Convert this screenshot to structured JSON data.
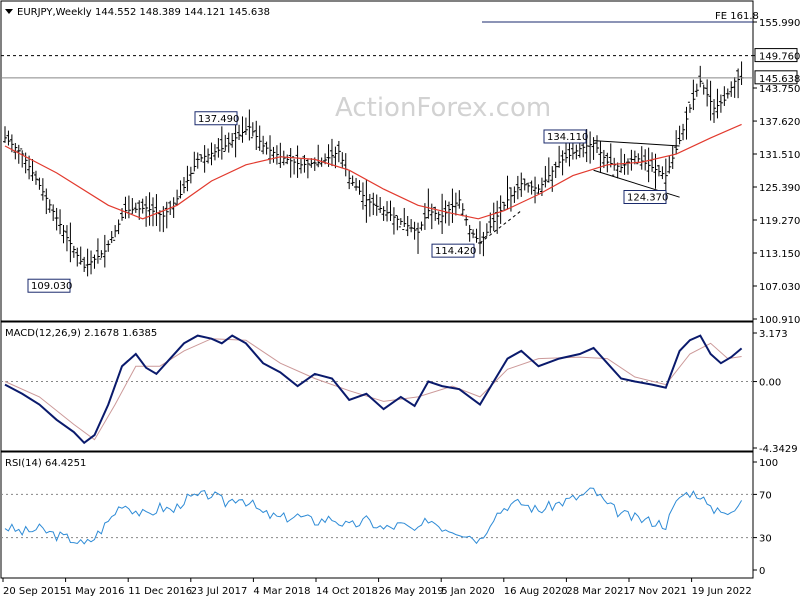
{
  "chart_data": [
    {
      "type": "ohlc",
      "title": "EURJPY,Weekly",
      "ohlc_text": "144.552 148.389 144.121 145.638",
      "watermark": "ActionForex.com",
      "ylim": [
        100.91,
        155.99
      ],
      "y_ticks": [
        "155.990",
        "149.760",
        "143.750",
        "137.620",
        "131.510",
        "125.390",
        "119.270",
        "113.150",
        "107.030",
        "100.910"
      ],
      "x_ticks": [
        "20 Sep 2015",
        "1 May 2016",
        "11 Dec 2016",
        "23 Jul 2017",
        "4 Mar 2018",
        "14 Oct 2018",
        "26 May 2019",
        "5 Jan 2020",
        "16 Aug 2020",
        "28 Mar 2021",
        "7 Nov 2021",
        "19 Jun 2022"
      ],
      "price_path": [
        [
          0,
          134.5
        ],
        [
          10,
          131.5
        ],
        [
          22,
          124.5
        ],
        [
          36,
          116.0
        ],
        [
          46,
          110.5
        ],
        [
          58,
          113.5
        ],
        [
          70,
          121.0
        ],
        [
          82,
          121.5
        ],
        [
          92,
          120.0
        ],
        [
          102,
          124.0
        ],
        [
          112,
          130.5
        ],
        [
          126,
          132.5
        ],
        [
          136,
          135.0
        ],
        [
          142,
          136.5
        ],
        [
          150,
          133.0
        ],
        [
          160,
          131.0
        ],
        [
          172,
          129.5
        ],
        [
          184,
          130.0
        ],
        [
          194,
          132.0
        ],
        [
          200,
          127.0
        ],
        [
          210,
          123.0
        ],
        [
          220,
          121.0
        ],
        [
          230,
          119.0
        ],
        [
          240,
          117.0
        ],
        [
          246,
          121.0
        ],
        [
          254,
          120.0
        ],
        [
          264,
          123.0
        ],
        [
          270,
          117.5
        ],
        [
          276,
          115.0
        ],
        [
          282,
          118.0
        ],
        [
          292,
          123.0
        ],
        [
          300,
          126.0
        ],
        [
          310,
          125.0
        ],
        [
          322,
          130.0
        ],
        [
          334,
          132.5
        ],
        [
          342,
          133.5
        ],
        [
          350,
          130.0
        ],
        [
          358,
          129.0
        ],
        [
          366,
          131.0
        ],
        [
          376,
          129.0
        ],
        [
          384,
          127.5
        ],
        [
          392,
          134.0
        ],
        [
          398,
          140.0
        ],
        [
          404,
          145.0
        ],
        [
          412,
          140.0
        ],
        [
          418,
          141.5
        ],
        [
          424,
          145.0
        ],
        [
          428,
          145.638
        ]
      ],
      "ma_path": [
        [
          0,
          133.0
        ],
        [
          30,
          128.0
        ],
        [
          60,
          122.0
        ],
        [
          80,
          119.5
        ],
        [
          100,
          122.0
        ],
        [
          120,
          126.5
        ],
        [
          140,
          129.5
        ],
        [
          160,
          131.0
        ],
        [
          180,
          130.5
        ],
        [
          200,
          128.5
        ],
        [
          220,
          125.0
        ],
        [
          240,
          122.0
        ],
        [
          260,
          120.5
        ],
        [
          275,
          119.5
        ],
        [
          290,
          121.0
        ],
        [
          310,
          124.0
        ],
        [
          330,
          127.5
        ],
        [
          350,
          129.5
        ],
        [
          370,
          130.0
        ],
        [
          390,
          131.5
        ],
        [
          410,
          134.5
        ],
        [
          428,
          137.0
        ]
      ],
      "annotations": [
        {
          "label": "137.490",
          "x": 136,
          "y": 137.49
        },
        {
          "label": "109.030",
          "x": 46,
          "y": 109.03
        },
        {
          "label": "114.420",
          "x": 276,
          "y": 114.42
        },
        {
          "label": "134.110",
          "x": 342,
          "y": 134.11
        },
        {
          "label": "124.370",
          "x": 384,
          "y": 124.37
        }
      ],
      "fe_label": "FE 161.8",
      "fe_level": 155.99,
      "resistance_label": "149.760",
      "resistance_level": 149.76,
      "last_label": "145.638",
      "last_level": 145.638,
      "trend_lines": [
        [
          [
            342,
            134.0
          ],
          [
            392,
            133.0
          ]
        ],
        [
          [
            342,
            128.5
          ],
          [
            392,
            123.5
          ]
        ],
        [
          [
            276,
            115.0
          ],
          [
            300,
            121.0
          ]
        ]
      ]
    },
    {
      "type": "line",
      "title": "MACD(12,26,9) 2.1678 1.6385",
      "ylim": [
        -4.3429,
        3.173
      ],
      "y_ticks": [
        "3.173",
        "0.00",
        "-4.3429"
      ],
      "macd": [
        [
          0,
          -0.2
        ],
        [
          10,
          -0.8
        ],
        [
          20,
          -1.5
        ],
        [
          30,
          -2.5
        ],
        [
          40,
          -3.3
        ],
        [
          46,
          -4.0
        ],
        [
          52,
          -3.5
        ],
        [
          60,
          -1.5
        ],
        [
          68,
          1.0
        ],
        [
          76,
          1.8
        ],
        [
          82,
          0.9
        ],
        [
          88,
          0.5
        ],
        [
          96,
          1.5
        ],
        [
          104,
          2.5
        ],
        [
          112,
          3.0
        ],
        [
          120,
          2.8
        ],
        [
          126,
          2.5
        ],
        [
          132,
          3.0
        ],
        [
          140,
          2.5
        ],
        [
          150,
          1.2
        ],
        [
          160,
          0.6
        ],
        [
          170,
          -0.3
        ],
        [
          180,
          0.5
        ],
        [
          190,
          0.2
        ],
        [
          200,
          -1.2
        ],
        [
          210,
          -0.8
        ],
        [
          220,
          -1.8
        ],
        [
          230,
          -1.0
        ],
        [
          238,
          -1.6
        ],
        [
          246,
          0.0
        ],
        [
          254,
          -0.3
        ],
        [
          264,
          -0.5
        ],
        [
          270,
          -1.0
        ],
        [
          276,
          -1.5
        ],
        [
          284,
          0.0
        ],
        [
          292,
          1.5
        ],
        [
          300,
          2.0
        ],
        [
          310,
          1.0
        ],
        [
          322,
          1.5
        ],
        [
          334,
          1.8
        ],
        [
          342,
          2.2
        ],
        [
          350,
          1.2
        ],
        [
          358,
          0.2
        ],
        [
          366,
          0.0
        ],
        [
          376,
          -0.2
        ],
        [
          384,
          -0.4
        ],
        [
          392,
          2.0
        ],
        [
          398,
          2.7
        ],
        [
          404,
          3.0
        ],
        [
          410,
          1.8
        ],
        [
          416,
          1.2
        ],
        [
          422,
          1.6
        ],
        [
          428,
          2.1678
        ]
      ],
      "signal": [
        [
          0,
          0.0
        ],
        [
          20,
          -1.0
        ],
        [
          40,
          -2.8
        ],
        [
          52,
          -3.8
        ],
        [
          64,
          -1.5
        ],
        [
          76,
          1.0
        ],
        [
          90,
          1.0
        ],
        [
          104,
          2.0
        ],
        [
          120,
          2.8
        ],
        [
          140,
          2.7
        ],
        [
          160,
          1.2
        ],
        [
          180,
          0.2
        ],
        [
          200,
          -0.6
        ],
        [
          220,
          -1.3
        ],
        [
          240,
          -1.0
        ],
        [
          260,
          -0.3
        ],
        [
          276,
          -1.0
        ],
        [
          292,
          0.8
        ],
        [
          310,
          1.5
        ],
        [
          334,
          1.6
        ],
        [
          350,
          1.5
        ],
        [
          366,
          0.3
        ],
        [
          384,
          -0.2
        ],
        [
          398,
          1.8
        ],
        [
          410,
          2.5
        ],
        [
          420,
          1.5
        ],
        [
          428,
          1.6385
        ]
      ]
    },
    {
      "type": "line",
      "title": "RSI(14) 64.4251",
      "ylim": [
        0,
        100
      ],
      "y_ticks": [
        "100",
        "70",
        "30",
        "0"
      ],
      "levels": [
        70,
        30
      ],
      "rsi": [
        [
          0,
          40
        ],
        [
          10,
          35
        ],
        [
          20,
          38
        ],
        [
          30,
          32
        ],
        [
          40,
          28
        ],
        [
          46,
          23
        ],
        [
          52,
          30
        ],
        [
          60,
          45
        ],
        [
          68,
          62
        ],
        [
          76,
          55
        ],
        [
          82,
          50
        ],
        [
          90,
          58
        ],
        [
          98,
          55
        ],
        [
          104,
          65
        ],
        [
          112,
          68
        ],
        [
          120,
          70
        ],
        [
          128,
          62
        ],
        [
          136,
          68
        ],
        [
          144,
          60
        ],
        [
          150,
          52
        ],
        [
          160,
          48
        ],
        [
          170,
          50
        ],
        [
          180,
          45
        ],
        [
          190,
          48
        ],
        [
          200,
          40
        ],
        [
          210,
          46
        ],
        [
          220,
          38
        ],
        [
          230,
          42
        ],
        [
          240,
          35
        ],
        [
          246,
          48
        ],
        [
          254,
          40
        ],
        [
          264,
          36
        ],
        [
          270,
          32
        ],
        [
          276,
          28
        ],
        [
          284,
          50
        ],
        [
          292,
          60
        ],
        [
          300,
          62
        ],
        [
          310,
          55
        ],
        [
          322,
          62
        ],
        [
          334,
          68
        ],
        [
          342,
          74
        ],
        [
          350,
          60
        ],
        [
          358,
          52
        ],
        [
          366,
          48
        ],
        [
          376,
          45
        ],
        [
          384,
          42
        ],
        [
          392,
          68
        ],
        [
          398,
          72
        ],
        [
          404,
          70
        ],
        [
          410,
          55
        ],
        [
          416,
          58
        ],
        [
          422,
          50
        ],
        [
          428,
          64.4251
        ]
      ]
    }
  ]
}
